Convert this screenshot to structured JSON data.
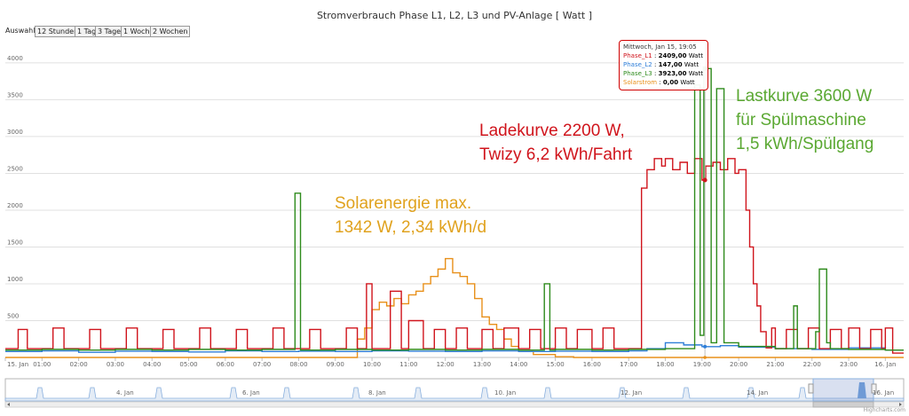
{
  "chart": {
    "title": "Stromverbrauch Phase L1, L2, L3 und PV-Anlage [ Watt ]",
    "range_selector": {
      "label": "Auswahl:",
      "buttons": [
        "12 Stunden",
        "1 Tag",
        "3 Tage",
        "1 Woche",
        "2 Wochen"
      ]
    },
    "credits": "Highcharts.com",
    "tooltip": {
      "header": "Mittwoch, Jan 15, 19:05",
      "rows": [
        {
          "name": "Phase_L1",
          "value": "2409,00",
          "unit": "Watt",
          "color": "#d0141c"
        },
        {
          "name": "Phase_L2",
          "value": "147,00",
          "unit": "Watt",
          "color": "#2f7ed8"
        },
        {
          "name": "Phase_L3",
          "value": "3923,00",
          "unit": "Watt",
          "color": "#2e8b1c"
        },
        {
          "name": "Solarstrom",
          "value": "0,00",
          "unit": "Watt",
          "color": "#e8901a"
        }
      ]
    },
    "annotations": [
      {
        "name": "annotation-solar",
        "color": "#e0a21e",
        "lines": [
          "Solarenergie max.",
          "1342 W, 2,34 kWh/d"
        ]
      },
      {
        "name": "annotation-ladekurve",
        "color": "#d0141c",
        "lines": [
          "Ladekurve 2200 W,",
          "Twizy 6,2 kWh/Fahrt"
        ]
      },
      {
        "name": "annotation-lastkurve",
        "color": "#5aa832",
        "lines": [
          "Lastkurve 3600 W",
          "für Spülmaschine",
          "1,5 kWh/Spülgang"
        ]
      }
    ],
    "navigator": {
      "labels": [
        "4. Jan",
        "6. Jan",
        "8. Jan",
        "10. Jan",
        "12. Jan",
        "14. Jan",
        "16. Jan"
      ]
    }
  },
  "chart_data": {
    "type": "line",
    "title": "Stromverbrauch Phase L1, L2, L3 und PV-Anlage [ Watt ]",
    "xlabel": "",
    "ylabel": "",
    "x_range": [
      "15. Jan 00:00",
      "16. Jan 00:30"
    ],
    "x_ticks": [
      "15. Jan",
      "01:00",
      "02:00",
      "03:00",
      "04:00",
      "05:00",
      "06:00",
      "07:00",
      "08:00",
      "09:00",
      "10:00",
      "11:00",
      "12:00",
      "13:00",
      "14:00",
      "15:00",
      "16:00",
      "17:00",
      "18:00",
      "19:00",
      "20:00",
      "21:00",
      "22:00",
      "23:00",
      "16. Jan"
    ],
    "y_ticks": [
      500,
      1000,
      1500,
      2000,
      2500,
      3000,
      3500,
      4000
    ],
    "ylim": [
      0,
      4300
    ],
    "grid": true,
    "legend": "none",
    "series": [
      {
        "name": "Phase_L1",
        "color": "#d0141c",
        "step": true,
        "x": [
          0,
          0.35,
          0.6,
          1.0,
          1.3,
          1.6,
          2.0,
          2.3,
          2.6,
          3.0,
          3.3,
          3.6,
          4.0,
          4.3,
          4.6,
          5.0,
          5.3,
          5.6,
          6.0,
          6.3,
          6.6,
          7.0,
          7.3,
          7.6,
          8.0,
          8.3,
          8.6,
          9.0,
          9.3,
          9.6,
          9.85,
          10.0,
          10.5,
          10.8,
          11.0,
          11.4,
          11.7,
          12.0,
          12.3,
          12.6,
          13.0,
          13.3,
          13.6,
          14.0,
          14.3,
          14.6,
          15.0,
          15.3,
          15.6,
          16.0,
          16.3,
          16.6,
          17.0,
          17.35,
          17.5,
          17.7,
          17.9,
          18.0,
          18.2,
          18.4,
          18.6,
          18.8,
          19.0,
          19.1,
          19.3,
          19.5,
          19.7,
          19.9,
          20.0,
          20.2,
          20.3,
          20.4,
          20.5,
          20.6,
          20.75,
          20.9,
          21.0,
          21.3,
          21.6,
          21.9,
          22.2,
          22.5,
          22.8,
          23.0,
          23.3,
          23.6,
          23.9,
          24.0,
          24.2,
          24.5
        ],
        "y": [
          120,
          380,
          120,
          120,
          400,
          120,
          120,
          380,
          120,
          120,
          400,
          120,
          120,
          380,
          120,
          120,
          400,
          120,
          120,
          380,
          120,
          120,
          400,
          120,
          120,
          380,
          120,
          120,
          400,
          120,
          1000,
          120,
          900,
          120,
          500,
          120,
          380,
          120,
          400,
          120,
          380,
          120,
          400,
          120,
          380,
          120,
          400,
          120,
          380,
          120,
          400,
          120,
          120,
          2300,
          2550,
          2700,
          2600,
          2700,
          2550,
          2650,
          2500,
          2700,
          2409,
          2600,
          2650,
          2550,
          2700,
          2500,
          2550,
          2000,
          1500,
          1000,
          700,
          350,
          130,
          400,
          120,
          380,
          120,
          400,
          120,
          380,
          120,
          400,
          120,
          380,
          120,
          400,
          60,
          60
        ]
      },
      {
        "name": "Phase_L2",
        "color": "#2f7ed8",
        "step": true,
        "x": [
          0,
          1,
          2,
          3,
          4,
          5,
          6,
          7,
          8,
          9,
          10,
          11,
          12,
          13,
          14,
          15,
          16,
          17,
          17.5,
          18,
          18.5,
          19,
          19.5,
          20,
          21,
          22,
          23,
          24,
          24.5
        ],
        "y": [
          80,
          90,
          70,
          85,
          80,
          75,
          90,
          80,
          85,
          80,
          90,
          85,
          80,
          90,
          80,
          85,
          80,
          90,
          120,
          200,
          170,
          147,
          160,
          140,
          120,
          110,
          130,
          100,
          100
        ]
      },
      {
        "name": "Phase_L3",
        "color": "#2e8b1c",
        "step": true,
        "x": [
          0,
          1,
          2,
          3,
          4,
          5,
          6,
          7,
          7.9,
          8.05,
          9,
          10,
          11,
          12,
          13,
          14,
          14.7,
          14.85,
          15,
          16,
          17,
          18,
          18.8,
          18.95,
          19.05,
          19.25,
          19.4,
          19.6,
          20,
          21,
          21.5,
          21.6,
          22.1,
          22.2,
          22.4,
          22.5,
          23,
          24,
          24.5
        ],
        "y": [
          100,
          110,
          100,
          110,
          100,
          110,
          100,
          110,
          2230,
          100,
          110,
          100,
          110,
          100,
          110,
          100,
          1000,
          100,
          110,
          100,
          110,
          120,
          3700,
          300,
          3923,
          200,
          3650,
          200,
          150,
          120,
          700,
          120,
          350,
          1200,
          200,
          120,
          110,
          100,
          100
        ]
      },
      {
        "name": "Solarstrom",
        "color": "#e8901a",
        "step": true,
        "x": [
          0,
          9.6,
          9.8,
          10.0,
          10.2,
          10.4,
          10.6,
          10.8,
          11.0,
          11.2,
          11.4,
          11.6,
          11.8,
          12.0,
          12.2,
          12.4,
          12.6,
          12.8,
          13.0,
          13.2,
          13.4,
          13.6,
          13.8,
          14.0,
          14.4,
          15.0,
          15.5,
          24.5
        ],
        "y": [
          0,
          250,
          400,
          650,
          750,
          700,
          800,
          730,
          850,
          900,
          1000,
          1100,
          1200,
          1342,
          1150,
          1100,
          1000,
          800,
          550,
          450,
          380,
          250,
          150,
          80,
          40,
          10,
          0,
          0
        ]
      }
    ]
  }
}
